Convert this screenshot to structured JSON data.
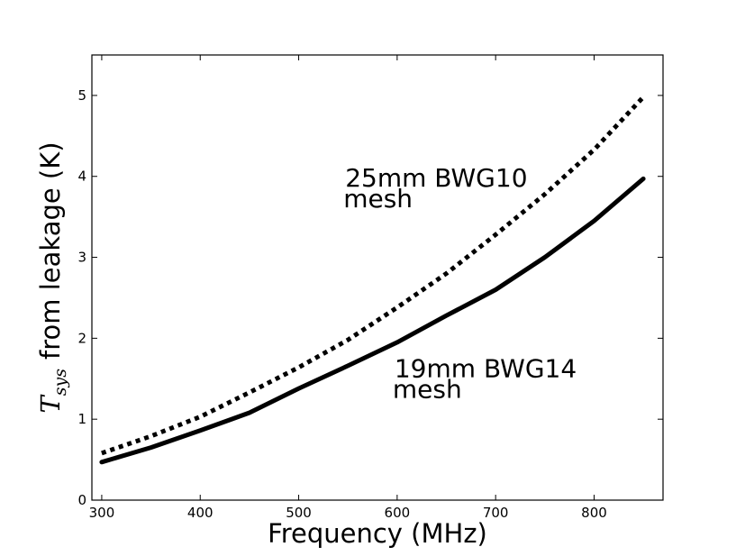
{
  "chart_data": {
    "type": "line",
    "title": "",
    "xlabel": "Frequency (MHz)",
    "ylabel_symbol": "T",
    "ylabel_subscript": "sys",
    "ylabel_rest": "from leakage (K)",
    "xlim": [
      290,
      870
    ],
    "ylim": [
      0,
      5.5
    ],
    "xticks": [
      300,
      400,
      500,
      600,
      700,
      800
    ],
    "yticks": [
      0,
      1,
      2,
      3,
      4,
      5
    ],
    "grid": false,
    "series": [
      {
        "style": "dotted",
        "color": "#000000",
        "x": [
          300,
          350,
          400,
          450,
          500,
          550,
          600,
          650,
          700,
          750,
          800,
          850
        ],
        "y": [
          0.58,
          0.79,
          1.03,
          1.33,
          1.64,
          1.98,
          2.38,
          2.8,
          3.28,
          3.78,
          4.33,
          4.98
        ]
      },
      {
        "style": "solid",
        "color": "#000000",
        "x": [
          300,
          350,
          400,
          450,
          500,
          550,
          600,
          650,
          700,
          750,
          800,
          850
        ],
        "y": [
          0.47,
          0.65,
          0.86,
          1.08,
          1.38,
          1.66,
          1.95,
          2.28,
          2.6,
          3.0,
          3.45,
          3.97
        ]
      }
    ],
    "annotations": [
      {
        "line1": "25mm BWG10",
        "line2": "mesh",
        "x": 550,
        "y": 3.85
      },
      {
        "line1": "19mm BWG14",
        "line2": "mesh",
        "x": 600,
        "y": 1.5
      }
    ]
  }
}
